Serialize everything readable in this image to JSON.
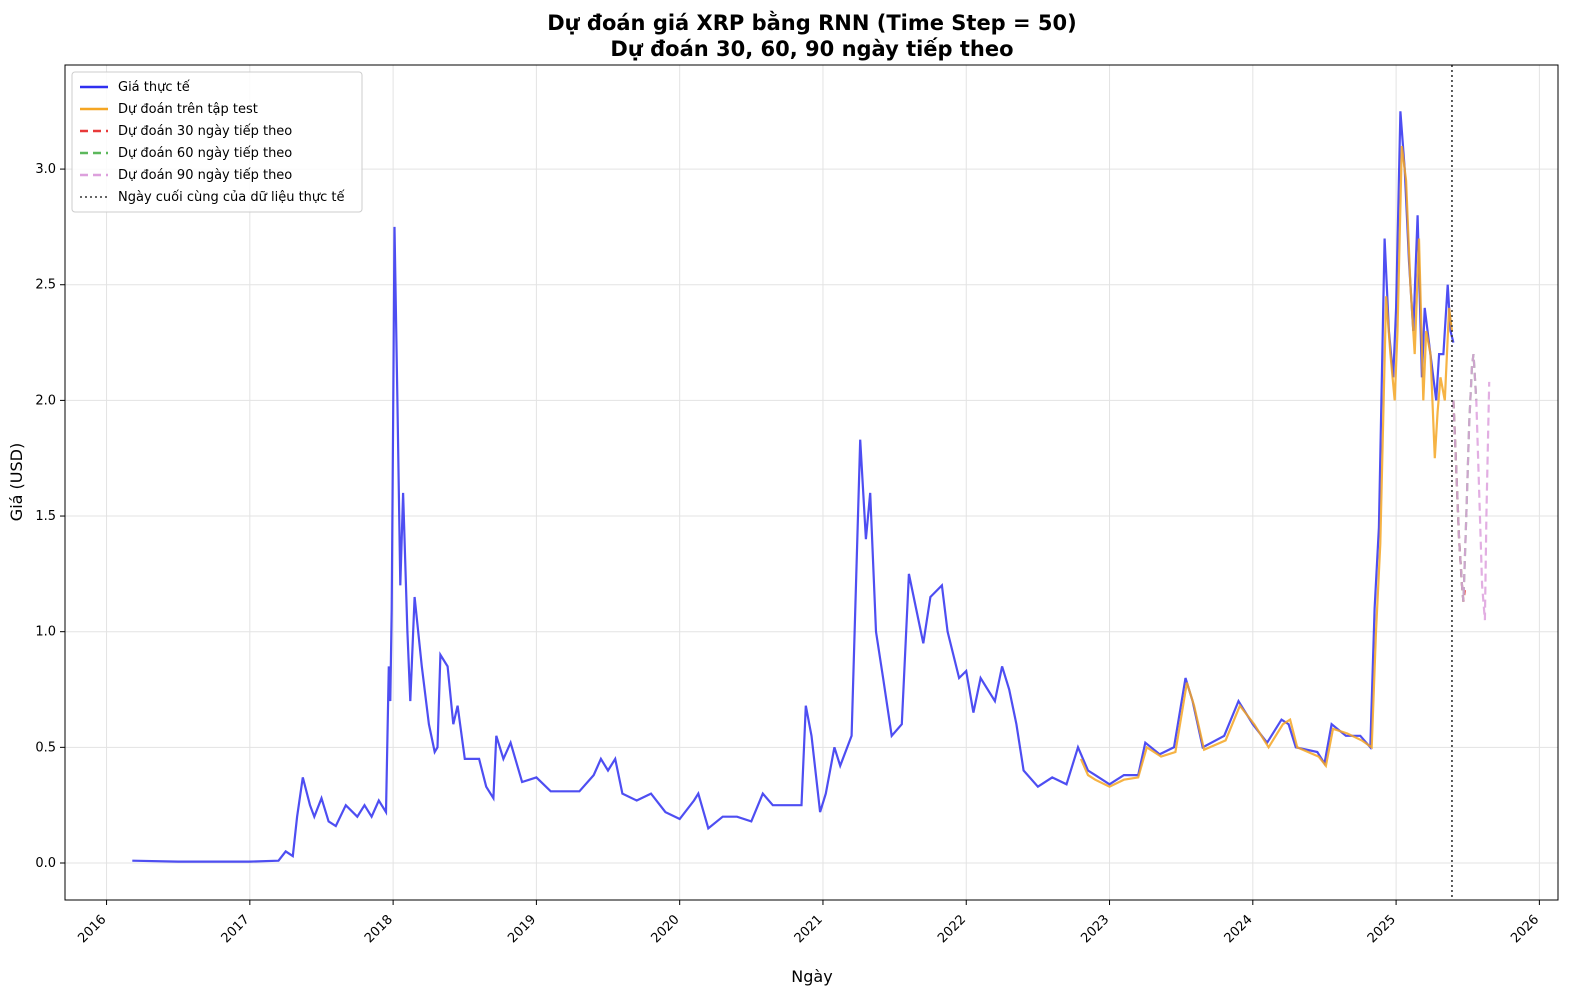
{
  "chart_data": {
    "type": "line",
    "title": "Dự đoán giá XRP bằng RNN (Time Step = 50)",
    "subtitle": "Dự đoán 30, 60, 90 ngày tiếp theo",
    "x_label": "Ngày",
    "y_label": "Giá (USD)",
    "xlim": [
      2015.71,
      2026.13
    ],
    "ylim": [
      -0.16,
      3.45
    ],
    "xticks": [
      2016,
      2017,
      2018,
      2019,
      2020,
      2021,
      2022,
      2023,
      2024,
      2025,
      2026
    ],
    "yticks": [
      {
        "value": 0,
        "label": "0.0"
      },
      0.5,
      {
        "value": 1,
        "label": "1.0"
      },
      1.5,
      {
        "value": 2,
        "label": "2.0"
      },
      2.5,
      {
        "value": 3,
        "label": "3.0"
      }
    ],
    "grid": true,
    "legend": "upper left",
    "series": [
      {
        "name": "Giá thực tế",
        "color": "#2f2ff0",
        "dash": "solid",
        "x": [
          2016.18,
          2016.5,
          2017.0,
          2017.2,
          2017.25,
          2017.3,
          2017.33,
          2017.37,
          2017.42,
          2017.45,
          2017.5,
          2017.55,
          2017.6,
          2017.67,
          2017.75,
          2017.8,
          2017.85,
          2017.9,
          2017.95,
          2017.97,
          2017.98,
          2017.99,
          2018.0,
          2018.01,
          2018.03,
          2018.05,
          2018.07,
          2018.1,
          2018.12,
          2018.15,
          2018.2,
          2018.25,
          2018.29,
          2018.31,
          2018.33,
          2018.38,
          2018.42,
          2018.45,
          2018.5,
          2018.6,
          2018.65,
          2018.7,
          2018.72,
          2018.77,
          2018.82,
          2018.9,
          2019.0,
          2019.1,
          2019.3,
          2019.4,
          2019.45,
          2019.5,
          2019.55,
          2019.6,
          2019.7,
          2019.8,
          2019.9,
          2020.0,
          2020.1,
          2020.13,
          2020.2,
          2020.3,
          2020.4,
          2020.5,
          2020.58,
          2020.65,
          2020.8,
          2020.85,
          2020.88,
          2020.92,
          2020.98,
          2021.02,
          2021.08,
          2021.12,
          2021.2,
          2021.26,
          2021.3,
          2021.33,
          2021.37,
          2021.42,
          2021.48,
          2021.55,
          2021.6,
          2021.65,
          2021.7,
          2021.75,
          2021.83,
          2021.87,
          2021.95,
          2022.0,
          2022.05,
          2022.1,
          2022.2,
          2022.25,
          2022.3,
          2022.35,
          2022.4,
          2022.5,
          2022.6,
          2022.7,
          2022.78,
          2022.85,
          2022.9,
          2023.0,
          2023.1,
          2023.2,
          2023.25,
          2023.35,
          2023.45,
          2023.53,
          2023.58,
          2023.65,
          2023.8,
          2023.9,
          2024.0,
          2024.1,
          2024.2,
          2024.25,
          2024.3,
          2024.45,
          2024.5,
          2024.55,
          2024.65,
          2024.75,
          2024.82,
          2024.85,
          2024.88,
          2024.92,
          2024.95,
          2024.98,
          2025.0,
          2025.03,
          2025.06,
          2025.09,
          2025.12,
          2025.15,
          2025.18,
          2025.2,
          2025.23,
          2025.26,
          2025.28,
          2025.3,
          2025.33,
          2025.36,
          2025.38,
          2025.4
        ],
        "values": [
          0.01,
          0.006,
          0.006,
          0.01,
          0.05,
          0.03,
          0.2,
          0.37,
          0.25,
          0.2,
          0.28,
          0.18,
          0.16,
          0.25,
          0.2,
          0.25,
          0.2,
          0.27,
          0.22,
          0.85,
          0.7,
          1.1,
          1.9,
          2.75,
          2.0,
          1.2,
          1.6,
          1.0,
          0.7,
          1.15,
          0.85,
          0.6,
          0.48,
          0.5,
          0.9,
          0.85,
          0.6,
          0.68,
          0.45,
          0.45,
          0.33,
          0.28,
          0.55,
          0.45,
          0.52,
          0.35,
          0.37,
          0.31,
          0.31,
          0.38,
          0.45,
          0.4,
          0.45,
          0.3,
          0.27,
          0.3,
          0.22,
          0.19,
          0.27,
          0.3,
          0.15,
          0.2,
          0.2,
          0.18,
          0.3,
          0.25,
          0.25,
          0.25,
          0.68,
          0.55,
          0.22,
          0.3,
          0.5,
          0.42,
          0.55,
          1.83,
          1.4,
          1.6,
          1.0,
          0.8,
          0.55,
          0.6,
          1.25,
          1.1,
          0.95,
          1.15,
          1.2,
          1.0,
          0.8,
          0.83,
          0.65,
          0.8,
          0.7,
          0.85,
          0.75,
          0.6,
          0.4,
          0.33,
          0.37,
          0.34,
          0.5,
          0.4,
          0.38,
          0.34,
          0.38,
          0.38,
          0.52,
          0.47,
          0.5,
          0.8,
          0.7,
          0.5,
          0.55,
          0.7,
          0.6,
          0.52,
          0.62,
          0.6,
          0.5,
          0.48,
          0.43,
          0.6,
          0.55,
          0.55,
          0.5,
          1.1,
          1.45,
          2.7,
          2.3,
          2.1,
          2.4,
          3.25,
          3.0,
          2.6,
          2.3,
          2.8,
          2.1,
          2.4,
          2.25,
          2.1,
          2.0,
          2.2,
          2.2,
          2.5,
          2.3,
          2.25
        ]
      },
      {
        "name": "Dự đoán trên tập test",
        "color": "#f5a623",
        "dash": "solid",
        "x": [
          2022.8,
          2022.85,
          2022.9,
          2023.0,
          2023.1,
          2023.2,
          2023.26,
          2023.36,
          2023.46,
          2023.54,
          2023.59,
          2023.66,
          2023.81,
          2023.91,
          2024.01,
          2024.11,
          2024.21,
          2024.26,
          2024.31,
          2024.46,
          2024.51,
          2024.56,
          2024.66,
          2024.76,
          2024.83,
          2024.86,
          2024.89,
          2024.93,
          2024.96,
          2024.99,
          2025.01,
          2025.04,
          2025.07,
          2025.1,
          2025.13,
          2025.16,
          2025.19,
          2025.21,
          2025.24,
          2025.27,
          2025.29,
          2025.31,
          2025.34,
          2025.37,
          2025.39
        ],
        "values": [
          0.45,
          0.38,
          0.36,
          0.33,
          0.36,
          0.37,
          0.5,
          0.46,
          0.48,
          0.78,
          0.68,
          0.49,
          0.53,
          0.68,
          0.6,
          0.5,
          0.6,
          0.62,
          0.5,
          0.46,
          0.42,
          0.58,
          0.56,
          0.53,
          0.5,
          1.0,
          1.38,
          2.45,
          2.2,
          2.0,
          2.3,
          3.1,
          2.95,
          2.5,
          2.2,
          2.7,
          2.0,
          2.3,
          2.2,
          1.75,
          1.95,
          2.1,
          2.0,
          2.4,
          2.3
        ]
      },
      {
        "name": "Dự đoán 30 ngày tiếp theo",
        "color": "#e83a3a",
        "dash": "8 5",
        "x": [
          2025.4,
          2025.42,
          2025.44,
          2025.46,
          2025.47,
          2025.48
        ],
        "values": [
          2.0,
          1.7,
          1.4,
          1.2,
          1.13,
          1.18
        ]
      },
      {
        "name": "Dự đoán 60 ngày tiếp theo",
        "color": "#5cb85c",
        "dash": "8 5",
        "x": [
          2025.4,
          2025.42,
          2025.44,
          2025.46,
          2025.47,
          2025.49,
          2025.51,
          2025.53,
          2025.54,
          2025.56
        ],
        "values": [
          2.0,
          1.7,
          1.4,
          1.2,
          1.13,
          1.5,
          1.9,
          2.15,
          2.2,
          2.0
        ]
      },
      {
        "name": "Dự đoán 90 ngày tiếp theo",
        "color": "#dda0dd",
        "dash": "8 5",
        "x": [
          2025.4,
          2025.42,
          2025.44,
          2025.46,
          2025.47,
          2025.49,
          2025.51,
          2025.53,
          2025.54,
          2025.56,
          2025.58,
          2025.6,
          2025.62,
          2025.63,
          2025.65
        ],
        "values": [
          2.0,
          1.7,
          1.4,
          1.2,
          1.13,
          1.5,
          1.9,
          2.15,
          2.2,
          2.0,
          1.6,
          1.2,
          1.05,
          1.5,
          2.08
        ]
      }
    ],
    "vline": {
      "x": 2025.39,
      "label": "Ngày cuối cùng của dữ liệu thực tế",
      "color": "#333333"
    }
  }
}
